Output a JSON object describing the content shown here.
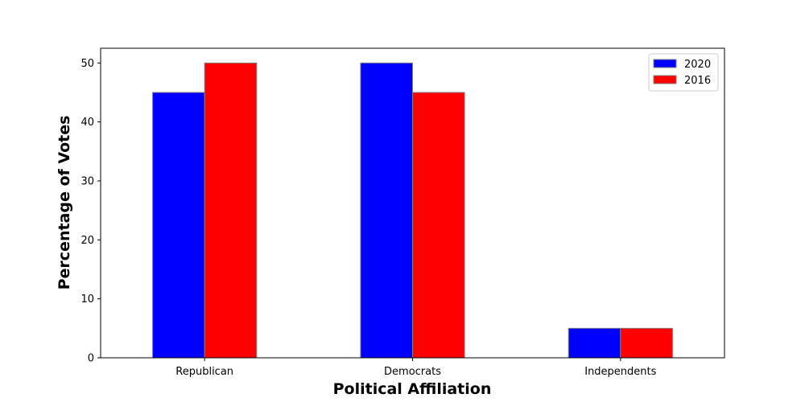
{
  "chart_data": {
    "type": "bar",
    "title": "",
    "xlabel": "Political Affiliation",
    "ylabel": "Percentage of Votes",
    "categories": [
      "Republican",
      "Democrats",
      "Independents"
    ],
    "series": [
      {
        "name": "2020",
        "values": [
          45,
          50,
          5
        ],
        "color": "#0000ff"
      },
      {
        "name": "2016",
        "values": [
          50,
          45,
          5
        ],
        "color": "#ff0000"
      }
    ],
    "ylim": [
      0,
      52.5
    ],
    "yticks": [
      0,
      10,
      20,
      30,
      40,
      50
    ],
    "grid": false,
    "legend": "top-right",
    "bar_edge_color": "#808080"
  }
}
